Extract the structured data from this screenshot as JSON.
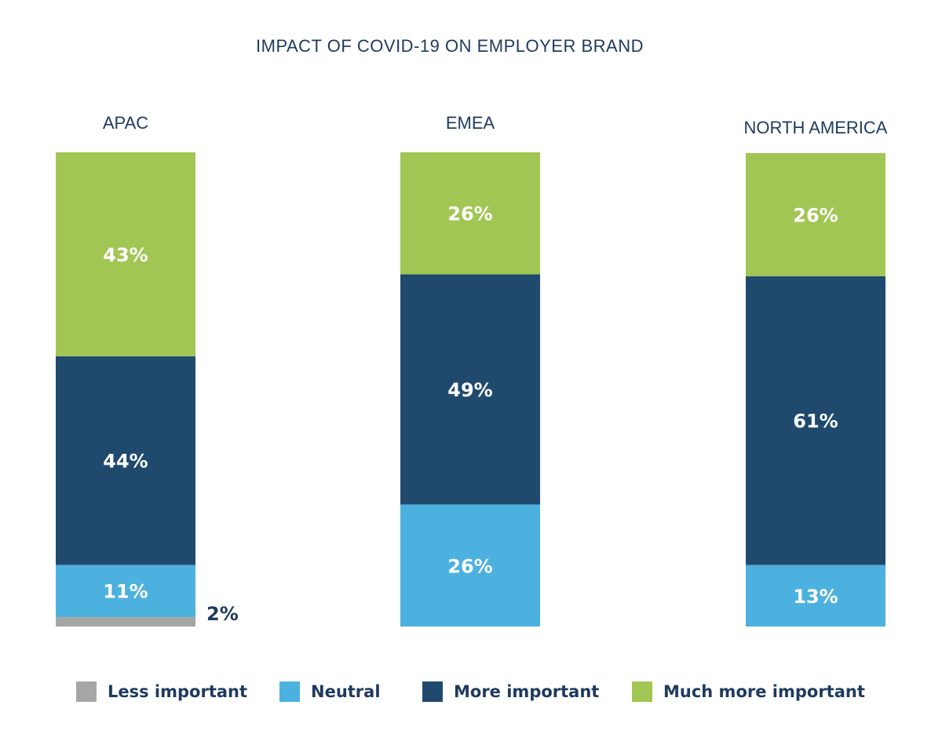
{
  "chart_data": {
    "type": "bar",
    "stacked": true,
    "title": "IMPACT OF COVID-19 ON EMPLOYER BRAND",
    "categories": [
      "APAC",
      "EMEA",
      "NORTH AMERICA"
    ],
    "series": [
      {
        "name": "Less important",
        "color": "#a6a6a6",
        "values": [
          2,
          0,
          0
        ],
        "labels": [
          "2%",
          "",
          ""
        ]
      },
      {
        "name": "Neutral",
        "color": "#4db1df",
        "values": [
          11,
          26,
          13
        ],
        "labels": [
          "11%",
          "26%",
          "13%"
        ]
      },
      {
        "name": "More important",
        "color": "#1f4a6e",
        "values": [
          44,
          49,
          61
        ],
        "labels": [
          "44%",
          "49%",
          "61%"
        ]
      },
      {
        "name": "Much more important",
        "color": "#a2c654",
        "values": [
          43,
          26,
          26
        ],
        "labels": [
          "43%",
          "26%",
          "26%"
        ]
      }
    ],
    "ylim": [
      0,
      100
    ],
    "legend_position": "bottom",
    "grid": false
  }
}
